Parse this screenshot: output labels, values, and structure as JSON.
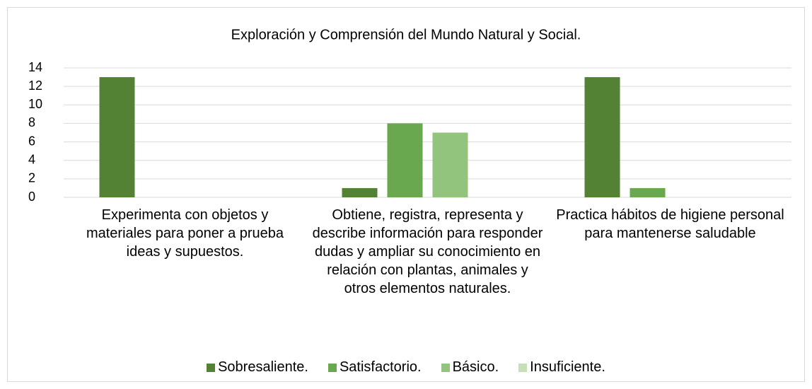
{
  "chart_data": {
    "type": "bar",
    "title": "Exploración y Comprensión del Mundo Natural y Social.",
    "categories": [
      "Experimenta con objetos y materiales para poner a prueba ideas y supuestos.",
      "Obtiene, registra, representa y describe información para responder dudas y ampliar su conocimiento en relación con plantas, animales y otros elementos naturales.",
      "Practica hábitos de higiene personal para mantenerse saludable"
    ],
    "series": [
      {
        "name": "Sobresaliente.",
        "color": "#548235",
        "values": [
          13,
          1,
          13
        ]
      },
      {
        "name": "Satisfactorio.",
        "color": "#6aa84f",
        "values": [
          0,
          8,
          1
        ]
      },
      {
        "name": "Básico.",
        "color": "#93c47d",
        "values": [
          0,
          7,
          0
        ]
      },
      {
        "name": "Insuficiente.",
        "color": "#c5e0b4",
        "values": [
          0,
          0,
          0
        ]
      }
    ],
    "ylim": [
      0,
      14
    ],
    "yticks": [
      0,
      2,
      4,
      6,
      8,
      10,
      12,
      14
    ],
    "grid": true,
    "legend": "bottom"
  }
}
